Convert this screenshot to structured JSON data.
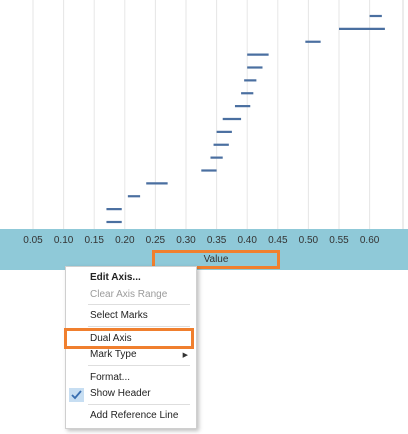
{
  "chart_data": {
    "type": "gantt",
    "title": "",
    "xlabel": "Value",
    "ylabel": "",
    "xlim": [
      0.0,
      0.65
    ],
    "x_ticks": [
      "0.05",
      "0.10",
      "0.15",
      "0.20",
      "0.25",
      "0.30",
      "0.35",
      "0.40",
      "0.45",
      "0.50",
      "0.55",
      "0.60"
    ],
    "grid": true,
    "bars": [
      {
        "start": 0.6,
        "end": 0.62
      },
      {
        "start": 0.55,
        "end": 0.625
      },
      {
        "start": 0.495,
        "end": 0.52
      },
      {
        "start": 0.4,
        "end": 0.435
      },
      {
        "start": 0.4,
        "end": 0.425
      },
      {
        "start": 0.395,
        "end": 0.415
      },
      {
        "start": 0.39,
        "end": 0.41
      },
      {
        "start": 0.38,
        "end": 0.405
      },
      {
        "start": 0.36,
        "end": 0.39
      },
      {
        "start": 0.35,
        "end": 0.375
      },
      {
        "start": 0.345,
        "end": 0.37
      },
      {
        "start": 0.34,
        "end": 0.36
      },
      {
        "start": 0.325,
        "end": 0.35
      },
      {
        "start": 0.235,
        "end": 0.27
      },
      {
        "start": 0.205,
        "end": 0.225
      },
      {
        "start": 0.17,
        "end": 0.195
      },
      {
        "start": 0.17,
        "end": 0.195
      }
    ]
  },
  "axis": {
    "title": "Value"
  },
  "context_menu": {
    "edit_axis": "Edit Axis...",
    "clear_axis_range": "Clear Axis Range",
    "select_marks": "Select Marks",
    "dual_axis": "Dual Axis",
    "mark_type": "Mark Type",
    "format": "Format...",
    "show_header": "Show Header",
    "add_reference_line": "Add Reference Line",
    "check_icon": "checkmark-icon",
    "submenu_icon": "submenu-arrow-icon"
  },
  "colors": {
    "bar": "#4a6fa0",
    "axis_band": "#8fc9d8",
    "highlight": "#f07f2e",
    "gridline": "#e6e6e6"
  }
}
